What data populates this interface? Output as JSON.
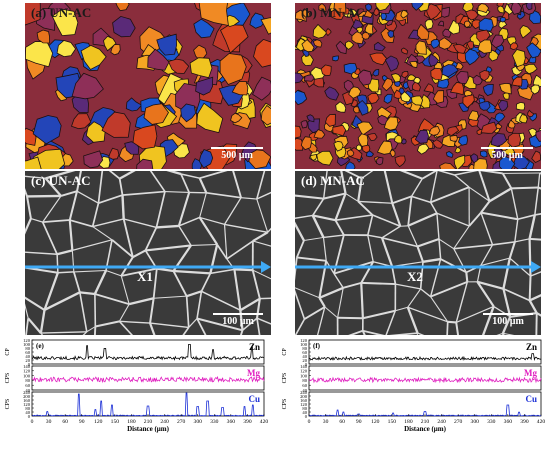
{
  "panels": {
    "a": {
      "label": "(a) UN-AC",
      "scale": "500 µm"
    },
    "b": {
      "label": "(b) MN-AC",
      "scale": "500 µm"
    },
    "c": {
      "label": "(c) UN-AC",
      "scale": "100 µm",
      "line_label": "X1"
    },
    "d": {
      "label": "(d) MN-AC",
      "scale": "100 µm",
      "line_label": "X2"
    }
  },
  "colors": {
    "zn": "#000000",
    "mg": "#e020c0",
    "cu": "#1b2fd6",
    "arrow": "#3fa9f5"
  },
  "chart_data": [
    {
      "type": "line",
      "panel_label": "(e)",
      "xlabel": "Distance (μm)",
      "xlim": [
        0,
        420
      ],
      "x_ticks": [
        "0",
        "30",
        "60",
        "90",
        "120",
        "150",
        "180",
        "210",
        "240",
        "270",
        "300",
        "330",
        "360",
        "390",
        "420"
      ],
      "series": [
        {
          "name": "Zn",
          "ylabel": "CP",
          "ylim": [
            0,
            120
          ],
          "y_ticks": [
            "0",
            "20",
            "40",
            "60",
            "80",
            "100",
            "120"
          ],
          "baseline": 30,
          "noise": 8,
          "peaks": [
            [
              100,
              92
            ],
            [
              132,
              78
            ],
            [
              285,
              98
            ],
            [
              328,
              72
            ],
            [
              398,
              84
            ]
          ]
        },
        {
          "name": "Mg",
          "ylabel": "CPS",
          "ylim": [
            40,
            140
          ],
          "y_ticks": [
            "40",
            "60",
            "80",
            "100",
            "120",
            "140"
          ],
          "baseline": 84,
          "noise": 10,
          "peaks": []
        },
        {
          "name": "Cu",
          "ylabel": "CPS",
          "ylim": [
            0,
            240
          ],
          "y_ticks": [
            "0",
            "40",
            "80",
            "120",
            "160",
            "200",
            "240"
          ],
          "baseline": 5,
          "noise": 4,
          "peaks": [
            [
              28,
              45
            ],
            [
              85,
              220
            ],
            [
              115,
              65
            ],
            [
              125,
              150
            ],
            [
              145,
              110
            ],
            [
              210,
              100
            ],
            [
              280,
              230
            ],
            [
              300,
              95
            ],
            [
              318,
              150
            ],
            [
              345,
              85
            ],
            [
              385,
              95
            ],
            [
              400,
              110
            ]
          ]
        }
      ]
    },
    {
      "type": "line",
      "panel_label": "(f)",
      "xlabel": "Distance (μm)",
      "xlim": [
        0,
        420
      ],
      "x_ticks": [
        "0",
        "30",
        "60",
        "90",
        "120",
        "150",
        "180",
        "210",
        "240",
        "270",
        "300",
        "330",
        "360",
        "390",
        "420"
      ],
      "series": [
        {
          "name": "Zn",
          "ylabel": "CP",
          "ylim": [
            0,
            120
          ],
          "y_ticks": [
            "0",
            "20",
            "40",
            "60",
            "80",
            "100",
            "120"
          ],
          "baseline": 28,
          "noise": 7,
          "peaks": [
            [
              405,
              52
            ]
          ]
        },
        {
          "name": "Mg",
          "ylabel": "CPS",
          "ylim": [
            40,
            140
          ],
          "y_ticks": [
            "40",
            "60",
            "80",
            "100",
            "120",
            "140"
          ],
          "baseline": 82,
          "noise": 9,
          "peaks": []
        },
        {
          "name": "Cu",
          "ylabel": "CPS",
          "ylim": [
            0,
            240
          ],
          "y_ticks": [
            "0",
            "40",
            "80",
            "120",
            "160",
            "200",
            "240"
          ],
          "baseline": 5,
          "noise": 4,
          "peaks": [
            [
              52,
              60
            ],
            [
              62,
              40
            ],
            [
              90,
              20
            ],
            [
              152,
              30
            ],
            [
              210,
              45
            ],
            [
              360,
              110
            ],
            [
              380,
              38
            ]
          ]
        }
      ]
    }
  ]
}
